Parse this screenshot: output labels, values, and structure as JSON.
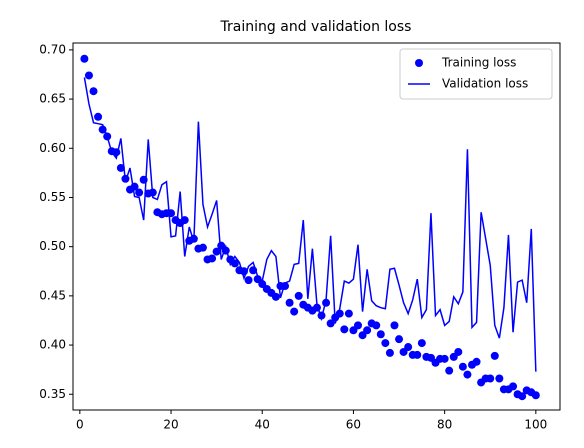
{
  "chart_data": {
    "type": "line",
    "title": "Training and validation loss",
    "x": [
      1,
      2,
      3,
      4,
      5,
      6,
      7,
      8,
      9,
      10,
      11,
      12,
      13,
      14,
      15,
      16,
      17,
      18,
      19,
      20,
      21,
      22,
      23,
      24,
      25,
      26,
      27,
      28,
      29,
      30,
      31,
      32,
      33,
      34,
      35,
      36,
      37,
      38,
      39,
      40,
      41,
      42,
      43,
      44,
      45,
      46,
      47,
      48,
      49,
      50,
      51,
      52,
      53,
      54,
      55,
      56,
      57,
      58,
      59,
      60,
      61,
      62,
      63,
      64,
      65,
      66,
      67,
      68,
      69,
      70,
      71,
      72,
      73,
      74,
      75,
      76,
      77,
      78,
      79,
      80,
      81,
      82,
      83,
      84,
      85,
      86,
      87,
      88,
      89,
      90,
      91,
      92,
      93,
      94,
      95,
      96,
      97,
      98,
      99,
      100
    ],
    "series": [
      {
        "name": "Training loss",
        "color": "#0000ff",
        "style": "dots",
        "values": [
          0.691,
          0.674,
          0.658,
          0.632,
          0.619,
          0.612,
          0.597,
          0.596,
          0.58,
          0.569,
          0.558,
          0.561,
          0.555,
          0.568,
          0.554,
          0.555,
          0.535,
          0.533,
          0.534,
          0.534,
          0.527,
          0.524,
          0.527,
          0.506,
          0.508,
          0.498,
          0.499,
          0.487,
          0.488,
          0.495,
          0.501,
          0.496,
          0.487,
          0.483,
          0.476,
          0.475,
          0.466,
          0.476,
          0.467,
          0.462,
          0.457,
          0.453,
          0.449,
          0.46,
          0.46,
          0.443,
          0.434,
          0.45,
          0.441,
          0.438,
          0.435,
          0.438,
          0.43,
          0.443,
          0.422,
          0.428,
          0.432,
          0.416,
          0.432,
          0.415,
          0.42,
          0.41,
          0.415,
          0.422,
          0.42,
          0.411,
          0.402,
          0.392,
          0.42,
          0.406,
          0.393,
          0.398,
          0.39,
          0.39,
          0.402,
          0.388,
          0.387,
          0.382,
          0.386,
          0.386,
          0.374,
          0.388,
          0.393,
          0.378,
          0.37,
          0.38,
          0.383,
          0.362,
          0.366,
          0.366,
          0.389,
          0.366,
          0.355,
          0.355,
          0.358,
          0.35,
          0.348,
          0.354,
          0.352,
          0.349
        ]
      },
      {
        "name": "Validation loss",
        "color": "#0000ff",
        "style": "line",
        "values": [
          0.672,
          0.645,
          0.626,
          0.625,
          0.624,
          0.612,
          0.596,
          0.59,
          0.61,
          0.566,
          0.58,
          0.551,
          0.55,
          0.527,
          0.609,
          0.55,
          0.548,
          0.563,
          0.566,
          0.51,
          0.511,
          0.556,
          0.49,
          0.52,
          0.505,
          0.627,
          0.543,
          0.52,
          0.533,
          0.547,
          0.487,
          0.5,
          0.482,
          0.49,
          0.484,
          0.468,
          0.48,
          0.484,
          0.47,
          0.465,
          0.487,
          0.496,
          0.49,
          0.448,
          0.463,
          0.465,
          0.482,
          0.483,
          0.527,
          0.447,
          0.498,
          0.441,
          0.427,
          0.446,
          0.511,
          0.422,
          0.437,
          0.465,
          0.463,
          0.467,
          0.502,
          0.434,
          0.477,
          0.445,
          0.44,
          0.438,
          0.437,
          0.477,
          0.478,
          0.461,
          0.443,
          0.432,
          0.446,
          0.467,
          0.428,
          0.436,
          0.534,
          0.43,
          0.436,
          0.42,
          0.424,
          0.449,
          0.442,
          0.454,
          0.599,
          0.418,
          0.423,
          0.535,
          0.508,
          0.481,
          0.42,
          0.407,
          0.438,
          0.512,
          0.413,
          0.464,
          0.466,
          0.443,
          0.518,
          0.373
        ]
      }
    ],
    "xlim": [
      -1.5,
      105.3
    ],
    "ylim": [
      0.334,
      0.707
    ],
    "xticks": [
      0,
      20,
      40,
      60,
      80,
      100
    ],
    "yticks": [
      {
        "value": 0.35,
        "label": "0.35"
      },
      {
        "value": 0.4,
        "label": "0.40"
      },
      {
        "value": 0.45,
        "label": "0.45"
      },
      {
        "value": 0.5,
        "label": "0.50"
      },
      {
        "value": 0.55,
        "label": "0.55"
      },
      {
        "value": 0.6,
        "label": "0.60"
      },
      {
        "value": 0.65,
        "label": "0.65"
      },
      {
        "value": 0.7,
        "label": "0.70"
      }
    ],
    "legend": "upper right"
  }
}
